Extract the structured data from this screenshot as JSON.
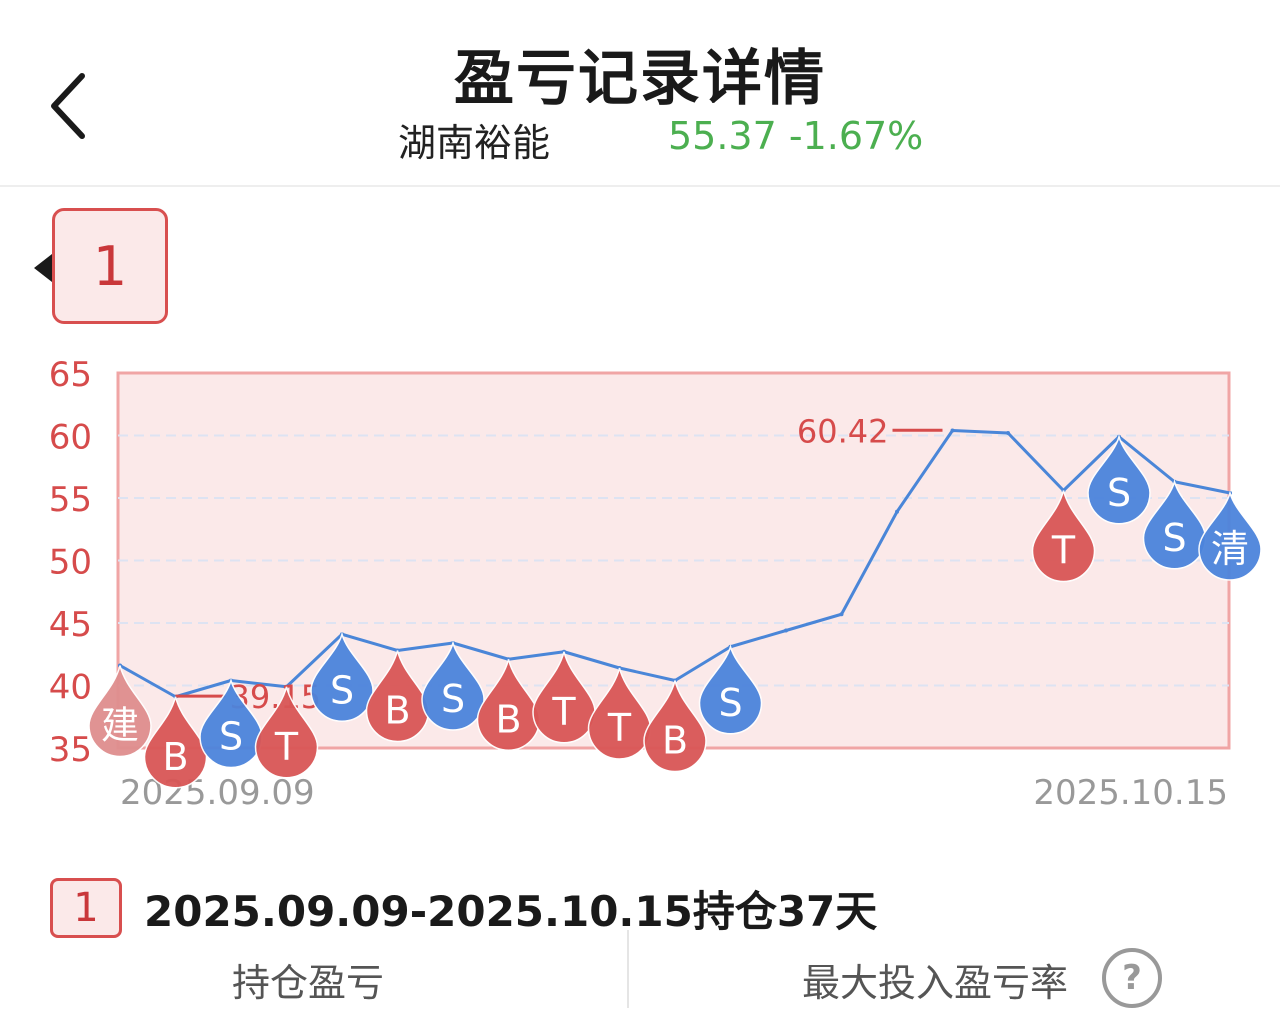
{
  "header": {
    "title": "盈亏记录详情",
    "stock_name": "湖南裕能",
    "stock_quote": "55.37 -1.67%",
    "quote_color": "#4caf50"
  },
  "record_tab": {
    "label": "1"
  },
  "chart_data": {
    "type": "line",
    "x_start_label": "2025.09.09",
    "x_end_label": "2025.10.15",
    "yticks": [
      "65",
      "60",
      "55",
      "50",
      "45",
      "40",
      "35"
    ],
    "ylim": [
      35,
      65
    ],
    "grid": true,
    "series": [
      {
        "values": [
          41.6,
          39.1,
          40.4,
          39.9,
          44.1,
          42.8,
          43.4,
          42.1,
          42.7,
          41.4,
          40.4,
          43.1,
          44.4,
          45.7,
          53.9,
          60.4,
          60.2,
          55.6,
          59.9,
          56.3,
          55.4
        ]
      }
    ],
    "annotations": [
      {
        "label": "39.15",
        "value": 39.15,
        "index": 1,
        "color": "#d64b4b"
      },
      {
        "label": "60.42",
        "value": 60.42,
        "index": 15,
        "color": "#d64b4b"
      }
    ],
    "markers": [
      {
        "label": "建",
        "index": 0,
        "kind": "build"
      },
      {
        "label": "B",
        "index": 1,
        "kind": "buy"
      },
      {
        "label": "S",
        "index": 2,
        "kind": "sell"
      },
      {
        "label": "T",
        "index": 3,
        "kind": "buy"
      },
      {
        "label": "S",
        "index": 4,
        "kind": "sell"
      },
      {
        "label": "B",
        "index": 5,
        "kind": "buy"
      },
      {
        "label": "S",
        "index": 6,
        "kind": "sell"
      },
      {
        "label": "B",
        "index": 7,
        "kind": "buy"
      },
      {
        "label": "T",
        "index": 8,
        "kind": "buy"
      },
      {
        "label": "T",
        "index": 9,
        "kind": "buy"
      },
      {
        "label": "B",
        "index": 10,
        "kind": "buy"
      },
      {
        "label": "S",
        "index": 11,
        "kind": "sell"
      },
      {
        "label": "T",
        "index": 17,
        "kind": "buy"
      },
      {
        "label": "S",
        "index": 18,
        "kind": "sell"
      },
      {
        "label": "S",
        "index": 19,
        "kind": "sell"
      },
      {
        "label": "清",
        "index": 20,
        "kind": "sell"
      }
    ],
    "colors": {
      "line": "#4a86d8",
      "axis_text": "#d64b4b",
      "plot_bg": "#fbe9e9",
      "plot_border": "#f0a5a5",
      "buy": "#d95656",
      "sell": "#4c84dc",
      "build": "#df8e8e"
    }
  },
  "period": {
    "badge": "1",
    "text": "2025.09.09-2025.10.15持仓37天"
  },
  "stats": {
    "left_label": "持仓盈亏",
    "right_label": "最大投入盈亏率",
    "help_glyph": "?"
  }
}
